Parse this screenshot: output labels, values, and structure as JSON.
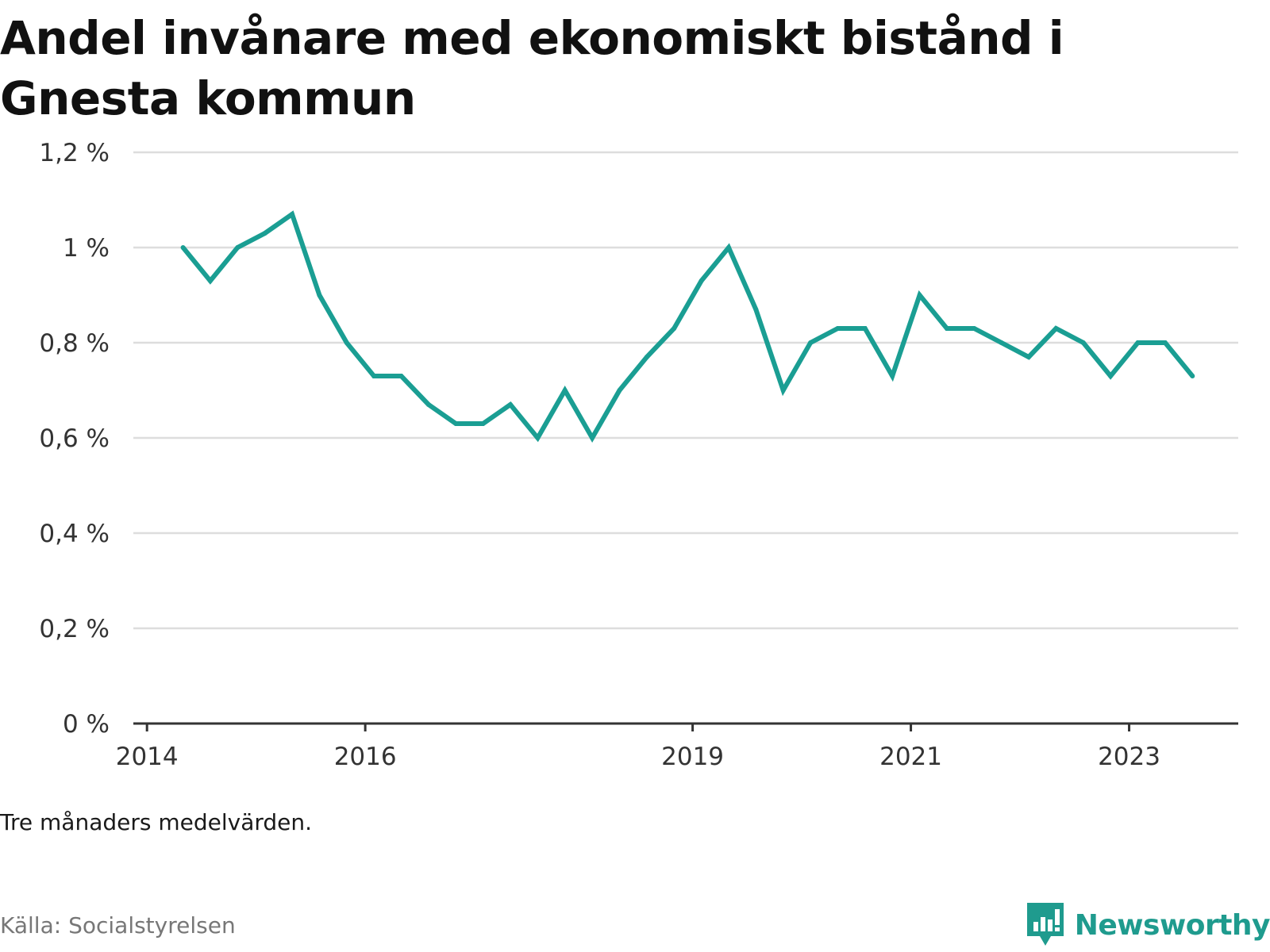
{
  "title": "Andel invånare med ekonomiskt bistånd i Gnesta kommun",
  "note": "Tre månaders medelvärden.",
  "source": "Källa: Socialstyrelsen",
  "brand": {
    "name": "Newsworthy",
    "icon": "bar-chart-speech-bubble-icon",
    "color": "#1f9b8e"
  },
  "chart_data": {
    "type": "line",
    "title": "Andel invånare med ekonomiskt bistånd i Gnesta kommun",
    "xlabel": "",
    "ylabel": "",
    "x_tick_labels": [
      "2014",
      "2016",
      "2019",
      "2021",
      "2023"
    ],
    "x_tick_values": [
      2014.0,
      2016.0,
      2019.0,
      2021.0,
      2023.0
    ],
    "y_tick_labels": [
      "0 %",
      "0,2 %",
      "0,4 %",
      "0,6 %",
      "0,8 %",
      "1 %",
      "1,2 %"
    ],
    "y_tick_values": [
      0,
      0.2,
      0.4,
      0.6,
      0.8,
      1.0,
      1.2
    ],
    "ylim": [
      0,
      1.2
    ],
    "xlim": [
      2013.875,
      2024.0
    ],
    "grid": true,
    "legend": "none",
    "line_color": "#1a9e93",
    "series": [
      {
        "x": [
          2014.33,
          2014.58,
          2014.83,
          2015.08,
          2015.33,
          2015.58,
          2015.83,
          2016.08,
          2016.33,
          2016.58,
          2016.83,
          2017.08,
          2017.33,
          2017.58,
          2017.83,
          2018.08,
          2018.33,
          2018.58,
          2018.83,
          2019.08,
          2019.33,
          2019.58,
          2019.83,
          2020.08,
          2020.33,
          2020.58,
          2020.83,
          2021.08,
          2021.33,
          2021.58,
          2021.83,
          2022.08,
          2022.33,
          2022.58,
          2022.83,
          2023.08,
          2023.33,
          2023.58
        ],
        "values": [
          1.0,
          0.93,
          1.0,
          1.03,
          1.07,
          0.9,
          0.8,
          0.73,
          0.73,
          0.67,
          0.63,
          0.63,
          0.67,
          0.6,
          0.7,
          0.6,
          0.7,
          0.77,
          0.83,
          0.93,
          1.0,
          0.87,
          0.7,
          0.8,
          0.83,
          0.83,
          0.73,
          0.9,
          0.83,
          0.83,
          0.8,
          0.77,
          0.83,
          0.8,
          0.73,
          0.8,
          0.8,
          0.73
        ]
      }
    ]
  }
}
